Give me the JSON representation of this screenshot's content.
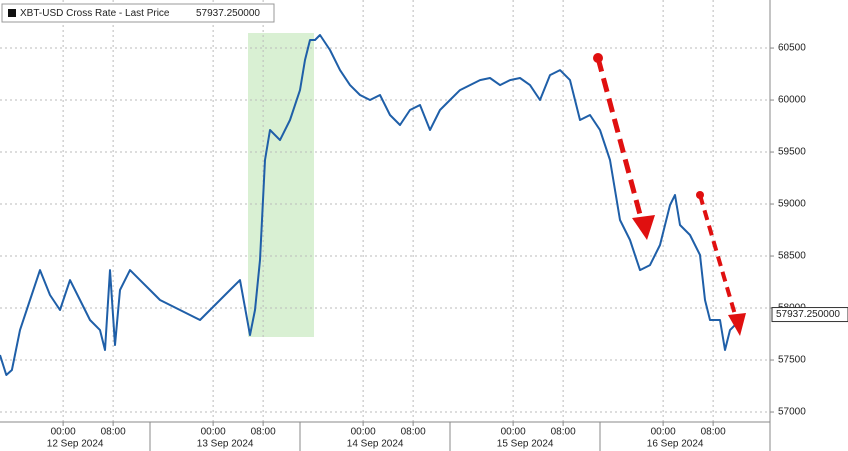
{
  "chart_data": {
    "type": "line",
    "legend_label": "XBT-USD Cross Rate - Last Price",
    "last_price": {
      "value": 57937.25,
      "label": "57937.250000"
    },
    "series": [
      {
        "name": "XBT-USD Cross Rate",
        "color": "#1f5fa8",
        "x": [
          -10.1,
          -9.1,
          -8.2,
          -6.9,
          -5.3,
          -3.7,
          -2.1,
          -0.5,
          1.1,
          2.7,
          4.3,
          5.9,
          6.7,
          7.5,
          8.3,
          9.1,
          10.7,
          12.3,
          13.9,
          15.5,
          17.1,
          18.7,
          20.3,
          21.9,
          23.5,
          25.1,
          26.7,
          28.3,
          29.9,
          30.7,
          31.5,
          32.3,
          33.1,
          34.7,
          36.3,
          37.9,
          38.7,
          39.5,
          40.3,
          41.1,
          42.7,
          44.3,
          45.9,
          47.5,
          49.1,
          50.7,
          52.3,
          53.9,
          55.5,
          57.1,
          58.7,
          60.3,
          61.9,
          63.5,
          65.1,
          66.7,
          68.3,
          69.9,
          71.5,
          73.1,
          74.7,
          76.3,
          77.9,
          79.5,
          81.1,
          82.7,
          84.3,
          85.9,
          87.5,
          89.1,
          90.7,
          92.3,
          93.9,
          95.5,
          97.1,
          97.9,
          98.7,
          100.3,
          101.9,
          102.7,
          103.5,
          105.1,
          105.9,
          106.7,
          108.3
        ],
        "values": [
          57548,
          57356,
          57404,
          57788,
          58077,
          58365,
          58125,
          57981,
          58269,
          58077,
          57885,
          57788,
          57596,
          58365,
          57644,
          58173,
          58365,
          58269,
          58173,
          58077,
          58029,
          57981,
          57933,
          57885,
          57981,
          58077,
          58173,
          58269,
          57740,
          57981,
          58462,
          59423,
          59712,
          59615,
          59808,
          60096,
          60385,
          60577,
          60577,
          60625,
          60481,
          60288,
          60144,
          60048,
          60000,
          60048,
          59856,
          59760,
          59904,
          59952,
          59712,
          59904,
          60000,
          60096,
          60144,
          60192,
          60212,
          60144,
          60192,
          60212,
          60144,
          60000,
          60240,
          60288,
          60192,
          59808,
          59856,
          59712,
          59423,
          58846,
          58654,
          58365,
          58413,
          58606,
          58990,
          59087,
          58798,
          58702,
          58510,
          58077,
          57885,
          57885,
          57596,
          57788,
          57885
        ]
      }
    ],
    "xlim": [
      -10.1,
      113.1
    ],
    "xticks": [
      {
        "value": 0,
        "label": "00:00"
      },
      {
        "value": 8,
        "label": "08:00"
      },
      {
        "value": 24,
        "label": "00:00"
      },
      {
        "value": 32,
        "label": "08:00"
      },
      {
        "value": 48,
        "label": "00:00"
      },
      {
        "value": 56,
        "label": "08:00"
      },
      {
        "value": 72,
        "label": "00:00"
      },
      {
        "value": 80,
        "label": "08:00"
      },
      {
        "value": 96,
        "label": "00:00"
      },
      {
        "value": 104,
        "label": "08:00"
      }
    ],
    "date_labels": [
      "12 Sep 2024",
      "13 Sep 2024",
      "14 Sep 2024",
      "15 Sep 2024",
      "16 Sep 2024"
    ],
    "ylim": [
      56904,
      60962
    ],
    "yticks": [
      57000,
      57500,
      58000,
      58500,
      59000,
      59500,
      60000,
      60500
    ],
    "grid": true
  }
}
